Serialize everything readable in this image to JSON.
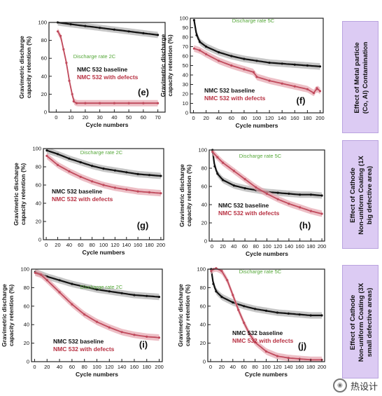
{
  "colors": {
    "baseline": "#111111",
    "baseline_band": "#b3b3b3",
    "defects": "#c04a5c",
    "defects_band": "#e7aab3",
    "legend_defects": "#b83243",
    "rate_label": "#56a83a",
    "effect_box": "#dccbf3"
  },
  "watermark": {
    "text": "热设计",
    "icon": "wechat-icon"
  },
  "effects": [
    "Effect of Metal particle (Co, Al) Contamination",
    "Effect of Cathode Non-uniform Coating (1X big defective area)",
    "Effect of Cathode Non-uniform Coating (3X small defective areas)"
  ],
  "chart_data": [
    {
      "panel": "(e)",
      "type": "line",
      "ylabel": "Gravimetric discharge capacity retention (%)",
      "xlabel": "Cycle numbers",
      "rate": "Discharge rate 2C",
      "xlim": [
        -5,
        75
      ],
      "ylim": [
        0,
        100
      ],
      "xticks": [
        0,
        10,
        20,
        30,
        40,
        50,
        60,
        70
      ],
      "yticks": [
        0,
        20,
        40,
        60,
        80,
        100
      ],
      "series": [
        {
          "name": "NMC 532 baseline",
          "x": [
            1,
            10,
            20,
            30,
            40,
            50,
            60,
            70
          ],
          "y": [
            100,
            98,
            96,
            94,
            92,
            90,
            88,
            86
          ]
        },
        {
          "name": "NMC 532 with defects",
          "x": [
            1,
            3,
            5,
            7,
            9,
            11,
            12,
            14,
            20,
            30,
            40,
            50,
            60,
            70
          ],
          "y": [
            90,
            85,
            70,
            55,
            35,
            20,
            12,
            10,
            10,
            10,
            10,
            10,
            10,
            10
          ]
        }
      ]
    },
    {
      "panel": "(f)",
      "type": "line",
      "ylabel": "Gravimetric discharge capacity retention (%)",
      "xlabel": "Cycle numbers",
      "rate": "Discharge rate 5C",
      "xlim": [
        -5,
        205
      ],
      "ylim": [
        0,
        100
      ],
      "xticks": [
        0,
        20,
        40,
        60,
        80,
        100,
        120,
        140,
        160,
        180,
        200
      ],
      "yticks": [
        0,
        10,
        20,
        30,
        40,
        50,
        60,
        70,
        80,
        90,
        100
      ],
      "series": [
        {
          "name": "NMC 532 baseline",
          "x": [
            1,
            5,
            10,
            20,
            40,
            60,
            80,
            100,
            120,
            140,
            160,
            180,
            200
          ],
          "y": [
            98,
            82,
            75,
            70,
            64,
            60,
            57,
            55,
            53,
            52,
            51,
            50,
            49
          ]
        },
        {
          "name": "NMC 532 with defects",
          "x": [
            1,
            10,
            20,
            40,
            60,
            80,
            95,
            100,
            120,
            140,
            160,
            180,
            190,
            195,
            200
          ],
          "y": [
            68,
            66,
            62,
            55,
            50,
            46,
            43,
            38,
            34,
            31,
            28,
            25,
            21,
            26,
            23
          ]
        }
      ]
    },
    {
      "panel": "(g)",
      "type": "line",
      "ylabel": "Gravimetric discharge capacity retention (%)",
      "xlabel": "Cycle numbers",
      "rate": "Discharge rate 2C",
      "xlim": [
        -5,
        205
      ],
      "ylim": [
        0,
        100
      ],
      "xticks": [
        0,
        20,
        40,
        60,
        80,
        100,
        120,
        140,
        160,
        180,
        200
      ],
      "yticks": [
        0,
        20,
        40,
        60,
        80,
        100
      ],
      "series": [
        {
          "name": "NMC 532 baseline",
          "x": [
            1,
            20,
            40,
            60,
            80,
            100,
            120,
            140,
            160,
            180,
            200
          ],
          "y": [
            98,
            94,
            89,
            85,
            81,
            78,
            76,
            74,
            72,
            71,
            70
          ]
        },
        {
          "name": "NMC 532 with defects",
          "x": [
            1,
            20,
            40,
            60,
            80,
            100,
            120,
            140,
            160,
            180,
            200
          ],
          "y": [
            92,
            82,
            75,
            69,
            64,
            60,
            57,
            55,
            53,
            52,
            51
          ]
        }
      ]
    },
    {
      "panel": "(h)",
      "type": "line",
      "ylabel": "Gravimetric discharge capacity retention (%)",
      "xlabel": "Cycle numbers",
      "rate": "Discharge rate 5C",
      "xlim": [
        -5,
        205
      ],
      "ylim": [
        0,
        100
      ],
      "xticks": [
        0,
        20,
        40,
        60,
        80,
        100,
        120,
        140,
        160,
        180,
        200
      ],
      "yticks": [
        0,
        20,
        40,
        60,
        80,
        100
      ],
      "series": [
        {
          "name": "NMC 532 baseline",
          "x": [
            1,
            5,
            10,
            20,
            40,
            60,
            80,
            100,
            120,
            140,
            160,
            180,
            200
          ],
          "y": [
            100,
            82,
            74,
            67,
            61,
            58,
            56,
            54,
            53,
            52,
            51,
            51,
            50
          ]
        },
        {
          "name": "NMC 532 with defects",
          "x": [
            1,
            10,
            20,
            40,
            60,
            80,
            100,
            120,
            140,
            160,
            180,
            200
          ],
          "y": [
            98,
            92,
            86,
            77,
            68,
            59,
            52,
            46,
            41,
            37,
            33,
            30
          ]
        }
      ]
    },
    {
      "panel": "(i)",
      "type": "line",
      "ylabel": "Gravimetric discharge capacity retention (%)",
      "xlabel": "Cycle numbers",
      "rate": "Discharge rate 2C",
      "xlim": [
        -5,
        205
      ],
      "ylim": [
        0,
        100
      ],
      "xticks": [
        0,
        20,
        40,
        60,
        80,
        100,
        120,
        140,
        160,
        180,
        200
      ],
      "yticks": [
        0,
        20,
        40,
        60,
        80,
        100
      ],
      "series": [
        {
          "name": "NMC 532 baseline",
          "x": [
            1,
            20,
            40,
            60,
            80,
            100,
            120,
            140,
            160,
            180,
            200
          ],
          "y": [
            97,
            92,
            88,
            84,
            81,
            78,
            76,
            74,
            72,
            71,
            70
          ]
        },
        {
          "name": "NMC 532 with defects",
          "x": [
            1,
            10,
            20,
            40,
            60,
            80,
            100,
            120,
            140,
            160,
            180,
            200
          ],
          "y": [
            96,
            94,
            88,
            75,
            62,
            51,
            43,
            37,
            32,
            29,
            27,
            26
          ]
        }
      ]
    },
    {
      "panel": "(j)",
      "type": "line",
      "ylabel": "Gravimetric discharge capacity retention (%)",
      "xlabel": "Cycle numbers",
      "rate": "Discharge rate 5C",
      "xlim": [
        -5,
        205
      ],
      "ylim": [
        0,
        100
      ],
      "xticks": [
        0,
        20,
        40,
        60,
        80,
        100,
        120,
        140,
        160,
        180,
        200
      ],
      "yticks": [
        0,
        20,
        40,
        60,
        80,
        100
      ],
      "series": [
        {
          "name": "NMC 532 baseline",
          "x": [
            1,
            5,
            10,
            20,
            40,
            60,
            80,
            100,
            120,
            140,
            160,
            180,
            200
          ],
          "y": [
            100,
            84,
            76,
            70,
            64,
            60,
            57,
            55,
            53,
            52,
            51,
            50,
            50
          ]
        },
        {
          "name": "NMC 532 with defects",
          "x": [
            1,
            5,
            10,
            20,
            30,
            40,
            50,
            60,
            70,
            80,
            100,
            120,
            140,
            160,
            180,
            200
          ],
          "y": [
            98,
            100,
            101,
            98,
            88,
            72,
            56,
            42,
            30,
            21,
            11,
            6,
            4,
            3,
            2,
            2
          ]
        }
      ]
    }
  ]
}
